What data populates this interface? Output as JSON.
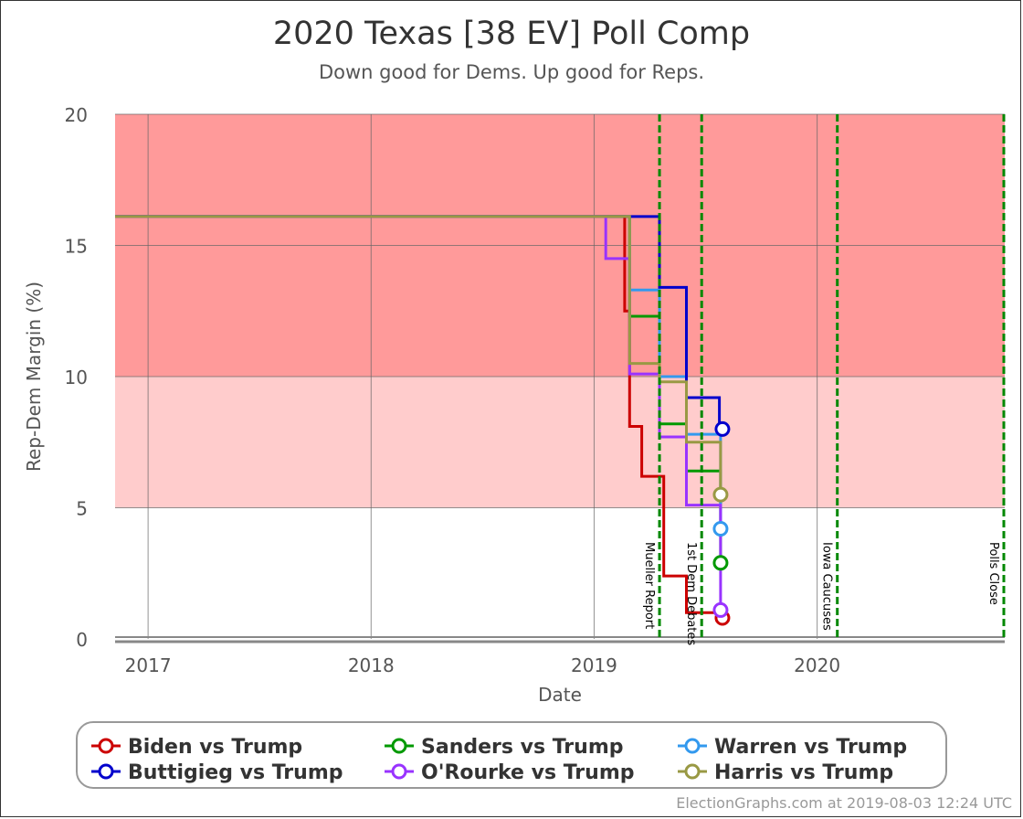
{
  "chart_data": {
    "type": "line",
    "title": "2020 Texas [38 EV] Poll Comp",
    "subtitle": "Down good for Dems. Up good for Reps.",
    "xlabel": "Date",
    "ylabel": "Rep-Dem Margin (%)",
    "xlim": [
      "2016-11-08",
      "2020-11-03"
    ],
    "ylim": [
      0,
      20
    ],
    "x_ticks": [
      {
        "label": "2017",
        "x": "2017-01-01"
      },
      {
        "label": "2018",
        "x": "2018-01-01"
      },
      {
        "label": "2019",
        "x": "2019-01-01"
      },
      {
        "label": "2020",
        "x": "2020-01-01"
      }
    ],
    "y_ticks": [
      0,
      5,
      10,
      15,
      20
    ],
    "bands": [
      {
        "from": 10,
        "to": 20,
        "color": "#ff9a9a"
      },
      {
        "from": 5,
        "to": 10,
        "color": "#ffcccc"
      }
    ],
    "events": [
      {
        "label": "Mueller Report",
        "x": "2019-04-18"
      },
      {
        "label": "1st Dem Debates",
        "x": "2019-06-26"
      },
      {
        "label": "Iowa Caucuses",
        "x": "2020-02-03"
      },
      {
        "label": "Polls Close",
        "x": "2020-11-03"
      }
    ],
    "legend_position": "bottom",
    "series": [
      {
        "name": "Biden vs Trump",
        "color": "#cc0000",
        "points": [
          [
            "2016-11-08",
            16.1
          ],
          [
            "2019-02-20",
            16.1
          ],
          [
            "2019-02-20",
            12.5
          ],
          [
            "2019-02-28",
            12.5
          ],
          [
            "2019-02-28",
            8.1
          ],
          [
            "2019-03-20",
            8.1
          ],
          [
            "2019-03-20",
            6.2
          ],
          [
            "2019-04-25",
            6.2
          ],
          [
            "2019-04-25",
            2.4
          ],
          [
            "2019-06-01",
            2.4
          ],
          [
            "2019-06-01",
            1.0
          ],
          [
            "2019-07-30",
            1.0
          ],
          [
            "2019-07-30",
            0.8
          ]
        ]
      },
      {
        "name": "Sanders vs Trump",
        "color": "#009900",
        "points": [
          [
            "2016-11-08",
            16.1
          ],
          [
            "2019-02-28",
            16.1
          ],
          [
            "2019-02-28",
            12.3
          ],
          [
            "2019-04-18",
            12.3
          ],
          [
            "2019-04-18",
            8.2
          ],
          [
            "2019-06-01",
            8.2
          ],
          [
            "2019-06-01",
            6.4
          ],
          [
            "2019-07-27",
            6.4
          ],
          [
            "2019-07-27",
            2.9
          ]
        ]
      },
      {
        "name": "Warren vs Trump",
        "color": "#3399ee",
        "points": [
          [
            "2016-11-08",
            16.1
          ],
          [
            "2019-02-28",
            16.1
          ],
          [
            "2019-02-28",
            13.3
          ],
          [
            "2019-04-18",
            13.3
          ],
          [
            "2019-04-18",
            10.0
          ],
          [
            "2019-06-01",
            10.0
          ],
          [
            "2019-06-01",
            7.8
          ],
          [
            "2019-07-27",
            7.8
          ],
          [
            "2019-07-27",
            4.2
          ]
        ]
      },
      {
        "name": "Buttigieg vs Trump",
        "color": "#0000cc",
        "points": [
          [
            "2016-11-08",
            16.1
          ],
          [
            "2019-04-18",
            16.1
          ],
          [
            "2019-04-18",
            13.4
          ],
          [
            "2019-06-01",
            13.4
          ],
          [
            "2019-06-01",
            9.2
          ],
          [
            "2019-07-25",
            9.2
          ],
          [
            "2019-07-25",
            8.0
          ],
          [
            "2019-07-30",
            8.0
          ]
        ]
      },
      {
        "name": "O'Rourke vs Trump",
        "color": "#9933ff",
        "points": [
          [
            "2016-11-08",
            16.1
          ],
          [
            "2019-01-20",
            16.1
          ],
          [
            "2019-01-20",
            14.5
          ],
          [
            "2019-02-28",
            14.5
          ],
          [
            "2019-02-28",
            10.1
          ],
          [
            "2019-04-18",
            10.1
          ],
          [
            "2019-04-18",
            7.7
          ],
          [
            "2019-06-01",
            7.7
          ],
          [
            "2019-06-01",
            5.1
          ],
          [
            "2019-07-27",
            5.1
          ],
          [
            "2019-07-27",
            1.1
          ]
        ]
      },
      {
        "name": "Harris vs Trump",
        "color": "#999944",
        "points": [
          [
            "2016-11-08",
            16.1
          ],
          [
            "2019-02-28",
            16.1
          ],
          [
            "2019-02-28",
            10.5
          ],
          [
            "2019-04-18",
            10.5
          ],
          [
            "2019-04-18",
            9.8
          ],
          [
            "2019-06-01",
            9.8
          ],
          [
            "2019-06-01",
            7.5
          ],
          [
            "2019-07-27",
            7.5
          ],
          [
            "2019-07-27",
            5.5
          ]
        ]
      }
    ],
    "legend_order": [
      "Biden vs Trump",
      "Sanders vs Trump",
      "Warren vs Trump",
      "Buttigieg vs Trump",
      "O'Rourke vs Trump",
      "Harris vs Trump"
    ]
  },
  "footer": "ElectionGraphs.com at 2019-08-03 12:24 UTC"
}
